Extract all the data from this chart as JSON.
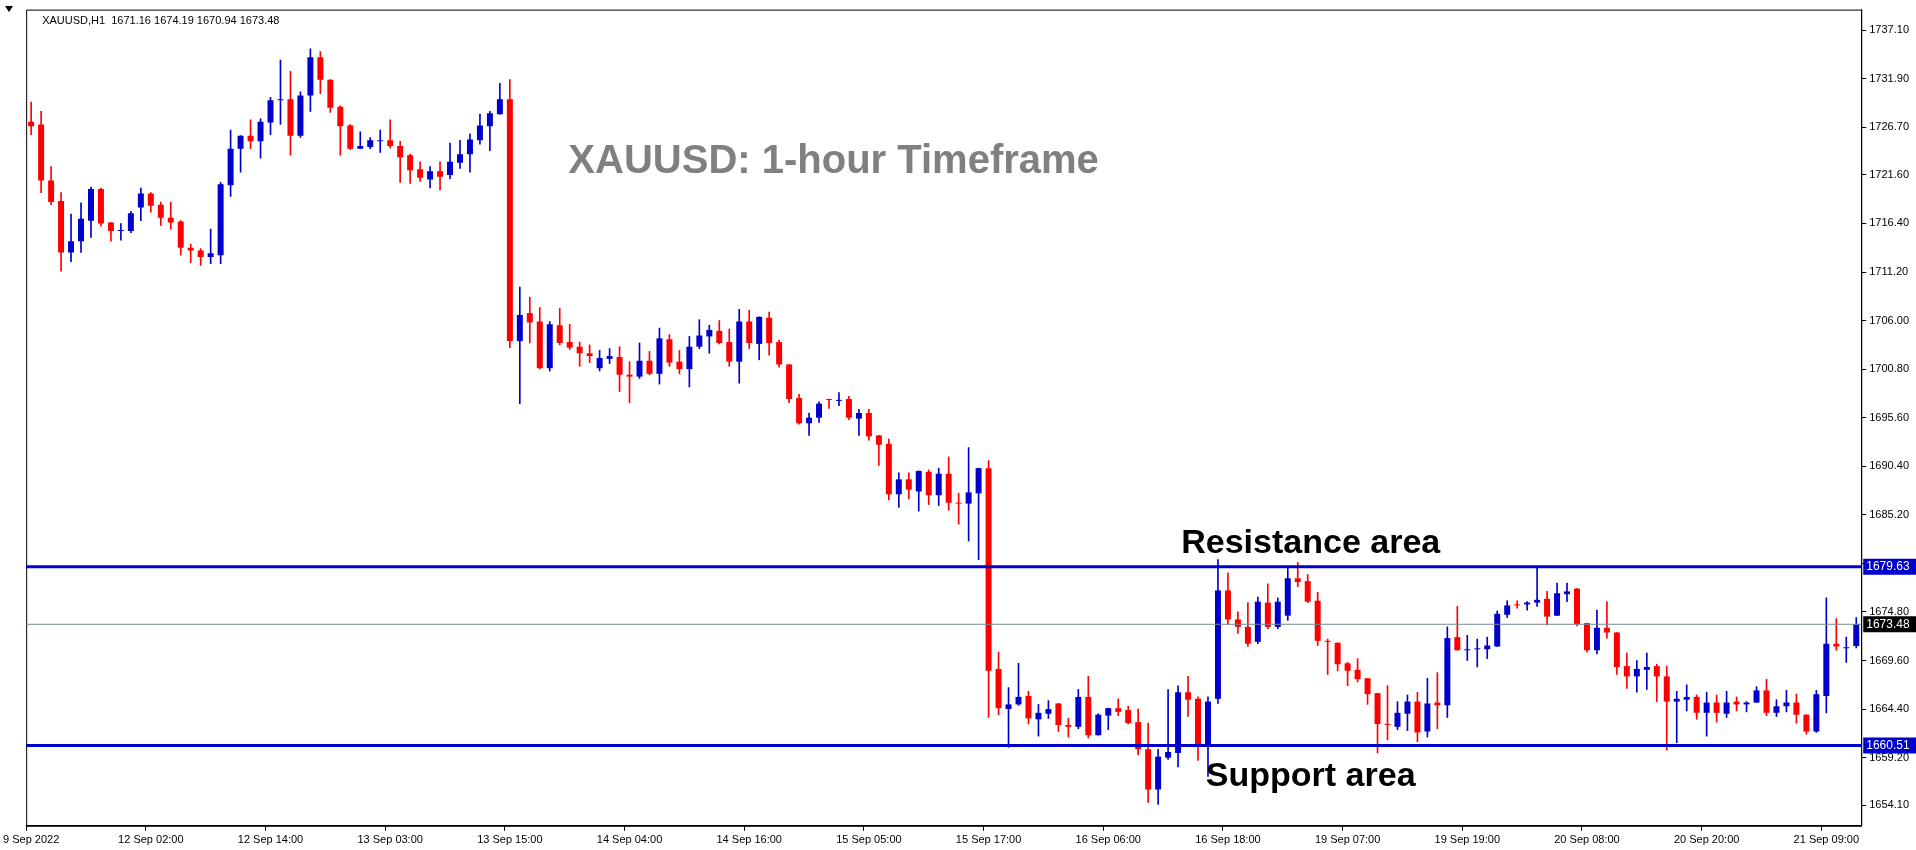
{
  "chart_data": {
    "type": "candlestick",
    "title": "XAUUSD: 1-hour Timeframe",
    "subtitle": "XAUUSD,H1  1671.16 1674.19 1670.94 1673.48",
    "categories": [
      "9 Sep 2022",
      null,
      null,
      null,
      null,
      null,
      null,
      null,
      null,
      null,
      null,
      null,
      "12 Sep 02:00",
      null,
      null,
      null,
      null,
      null,
      null,
      null,
      null,
      null,
      null,
      null,
      "12 Sep 14:00",
      null,
      null,
      null,
      null,
      null,
      null,
      null,
      null,
      null,
      null,
      null,
      "13 Sep 03:00",
      null,
      null,
      null,
      null,
      null,
      null,
      null,
      null,
      null,
      null,
      null,
      "13 Sep 15:00",
      null,
      null,
      null,
      null,
      null,
      null,
      null,
      null,
      null,
      null,
      null,
      "14 Sep 04:00",
      null,
      null,
      null,
      null,
      null,
      null,
      null,
      null,
      null,
      null,
      null,
      "14 Sep 16:00",
      null,
      null,
      null,
      null,
      null,
      null,
      null,
      null,
      null,
      null,
      null,
      "15 Sep 05:00",
      null,
      null,
      null,
      null,
      null,
      null,
      null,
      null,
      null,
      null,
      null,
      "15 Sep 17:00",
      null,
      null,
      null,
      null,
      null,
      null,
      null,
      null,
      null,
      null,
      null,
      "16 Sep 06:00",
      null,
      null,
      null,
      null,
      null,
      null,
      null,
      null,
      null,
      null,
      null,
      "16 Sep 18:00",
      null,
      null,
      null,
      null,
      null,
      null,
      null,
      null,
      null,
      null,
      null,
      "19 Sep 07:00",
      null,
      null,
      null,
      null,
      null,
      null,
      null,
      null,
      null,
      null,
      null,
      "19 Sep 19:00",
      null,
      null,
      null,
      null,
      null,
      null,
      null,
      null,
      null,
      null,
      null,
      "20 Sep 08:00",
      null,
      null,
      null,
      null,
      null,
      null,
      null,
      null,
      null,
      null,
      null,
      "20 Sep 20:00",
      null,
      null,
      null,
      null,
      null,
      null,
      null,
      null,
      null,
      null,
      null,
      "21 Sep 09:00",
      null,
      null,
      null
    ],
    "ohlc": [
      [
        1727.3,
        1729.4,
        1725.9,
        1726.8
      ],
      [
        1727.0,
        1728.4,
        1719.7,
        1721.0
      ],
      [
        1721.0,
        1722.5,
        1718.4,
        1718.7
      ],
      [
        1718.8,
        1719.7,
        1711.3,
        1713.3
      ],
      [
        1713.3,
        1717.4,
        1712.3,
        1714.5
      ],
      [
        1714.5,
        1718.6,
        1713.3,
        1716.9
      ],
      [
        1716.7,
        1720.3,
        1714.9,
        1720.1
      ],
      [
        1720.1,
        1720.2,
        1716.1,
        1716.4
      ],
      [
        1716.5,
        1716.5,
        1714.5,
        1715.6
      ],
      [
        1715.6,
        1716.4,
        1714.6,
        1715.7
      ],
      [
        1715.6,
        1717.7,
        1715.4,
        1717.5
      ],
      [
        1718.1,
        1720.2,
        1716.7,
        1719.6
      ],
      [
        1719.6,
        1719.7,
        1717.6,
        1718.3
      ],
      [
        1718.4,
        1718.7,
        1716.2,
        1717.0
      ],
      [
        1717.0,
        1718.7,
        1715.8,
        1716.5
      ],
      [
        1716.6,
        1716.7,
        1713.0,
        1713.8
      ],
      [
        1713.8,
        1714.2,
        1712.2,
        1713.5
      ],
      [
        1713.5,
        1713.7,
        1711.9,
        1712.8
      ],
      [
        1712.8,
        1715.8,
        1712.1,
        1713.2
      ],
      [
        1713.0,
        1720.8,
        1712.1,
        1720.6
      ],
      [
        1720.5,
        1726.4,
        1719.3,
        1724.4
      ],
      [
        1724.4,
        1725.8,
        1721.9,
        1725.8
      ],
      [
        1725.8,
        1727.5,
        1724.4,
        1725.2
      ],
      [
        1725.2,
        1727.6,
        1723.4,
        1727.3
      ],
      [
        1727.2,
        1729.9,
        1725.9,
        1729.6
      ],
      [
        1729.6,
        1733.9,
        1727.0,
        1729.7
      ],
      [
        1729.7,
        1732.7,
        1723.7,
        1725.8
      ],
      [
        1725.8,
        1730.5,
        1725.6,
        1730.1
      ],
      [
        1730.1,
        1735.1,
        1728.4,
        1734.2
      ],
      [
        1734.2,
        1734.8,
        1730.3,
        1731.8
      ],
      [
        1731.8,
        1731.8,
        1728.3,
        1728.8
      ],
      [
        1728.9,
        1729.0,
        1723.7,
        1726.8
      ],
      [
        1726.9,
        1727.0,
        1724.3,
        1724.4
      ],
      [
        1724.4,
        1726.2,
        1724.4,
        1724.7
      ],
      [
        1724.6,
        1725.6,
        1724.4,
        1725.3
      ],
      [
        1725.2,
        1726.4,
        1724.0,
        1725.3
      ],
      [
        1725.3,
        1727.5,
        1724.5,
        1724.7
      ],
      [
        1724.7,
        1725.2,
        1720.8,
        1723.5
      ],
      [
        1723.7,
        1723.8,
        1720.7,
        1722.1
      ],
      [
        1722.2,
        1723.0,
        1720.9,
        1721.3
      ],
      [
        1721.1,
        1722.5,
        1720.2,
        1722.0
      ],
      [
        1722.0,
        1723.0,
        1720.0,
        1721.4
      ],
      [
        1721.6,
        1725.0,
        1721.2,
        1723.0
      ],
      [
        1722.9,
        1725.3,
        1722.3,
        1723.8
      ],
      [
        1723.8,
        1726.0,
        1721.9,
        1725.4
      ],
      [
        1725.3,
        1728.1,
        1724.9,
        1726.9
      ],
      [
        1726.8,
        1728.4,
        1724.2,
        1728.2
      ],
      [
        1728.1,
        1731.4,
        1728.1,
        1729.7
      ],
      [
        1729.7,
        1731.8,
        1703.1,
        1703.8
      ],
      [
        1703.8,
        1709.6,
        1697.1,
        1706.6
      ],
      [
        1706.8,
        1708.5,
        1703.6,
        1705.8
      ],
      [
        1705.9,
        1707.4,
        1700.8,
        1700.9
      ],
      [
        1700.9,
        1705.9,
        1700.6,
        1705.6
      ],
      [
        1705.5,
        1707.3,
        1703.4,
        1703.6
      ],
      [
        1703.7,
        1705.6,
        1702.9,
        1703.1
      ],
      [
        1703.2,
        1703.7,
        1701.1,
        1702.5
      ],
      [
        1702.5,
        1703.4,
        1701.5,
        1702.2
      ],
      [
        1700.9,
        1702.8,
        1700.6,
        1702.0
      ],
      [
        1701.9,
        1703.0,
        1701.4,
        1702.2
      ],
      [
        1702.1,
        1703.2,
        1698.4,
        1700.2
      ],
      [
        1700.2,
        1701.6,
        1697.2,
        1700.0
      ],
      [
        1700.0,
        1703.6,
        1699.8,
        1701.7
      ],
      [
        1701.7,
        1702.7,
        1700.2,
        1700.3
      ],
      [
        1700.3,
        1705.2,
        1699.2,
        1704.1
      ],
      [
        1704.0,
        1704.5,
        1701.1,
        1701.5
      ],
      [
        1701.6,
        1702.8,
        1700.3,
        1700.8
      ],
      [
        1700.8,
        1704.3,
        1698.9,
        1703.2
      ],
      [
        1703.2,
        1706.1,
        1703.0,
        1704.4
      ],
      [
        1704.3,
        1705.5,
        1702.5,
        1705.0
      ],
      [
        1704.9,
        1706.0,
        1703.5,
        1703.6
      ],
      [
        1703.7,
        1705.1,
        1701.1,
        1701.6
      ],
      [
        1701.6,
        1707.2,
        1699.3,
        1705.9
      ],
      [
        1705.9,
        1707.1,
        1703.0,
        1703.6
      ],
      [
        1703.5,
        1706.4,
        1701.8,
        1706.4
      ],
      [
        1706.3,
        1706.9,
        1702.3,
        1703.6
      ],
      [
        1703.7,
        1703.9,
        1701.0,
        1701.3
      ],
      [
        1701.3,
        1701.3,
        1697.2,
        1697.6
      ],
      [
        1697.7,
        1698.1,
        1694.9,
        1695.0
      ],
      [
        1695.0,
        1696.1,
        1693.7,
        1695.6
      ],
      [
        1695.6,
        1697.3,
        1695.1,
        1697.1
      ],
      [
        1697.6,
        1697.6,
        1696.6,
        1697.5
      ],
      [
        1697.4,
        1698.3,
        1696.9,
        1697.5
      ],
      [
        1697.6,
        1697.9,
        1695.4,
        1695.6
      ],
      [
        1695.5,
        1696.5,
        1693.7,
        1696.1
      ],
      [
        1696.1,
        1696.5,
        1693.2,
        1693.6
      ],
      [
        1693.7,
        1693.7,
        1690.5,
        1692.7
      ],
      [
        1692.8,
        1693.3,
        1686.8,
        1687.4
      ],
      [
        1687.4,
        1689.7,
        1686.0,
        1689.0
      ],
      [
        1689.0,
        1689.7,
        1686.9,
        1687.9
      ],
      [
        1687.7,
        1689.9,
        1685.6,
        1689.9
      ],
      [
        1689.8,
        1690.0,
        1686.3,
        1687.3
      ],
      [
        1687.3,
        1690.2,
        1686.2,
        1689.6
      ],
      [
        1689.6,
        1691.4,
        1685.7,
        1686.5
      ],
      [
        1686.5,
        1687.5,
        1684.2,
        1686.4
      ],
      [
        1686.4,
        1692.4,
        1682.4,
        1687.6
      ],
      [
        1687.5,
        1690.2,
        1680.4,
        1690.2
      ],
      [
        1690.2,
        1691.0,
        1663.5,
        1668.5
      ],
      [
        1668.7,
        1670.5,
        1663.8,
        1664.5
      ],
      [
        1664.4,
        1666.7,
        1660.3,
        1664.9
      ],
      [
        1664.9,
        1669.3,
        1664.8,
        1665.7
      ],
      [
        1665.8,
        1666.3,
        1662.8,
        1663.4
      ],
      [
        1663.3,
        1664.9,
        1661.5,
        1664.0
      ],
      [
        1663.9,
        1665.3,
        1663.4,
        1664.4
      ],
      [
        1665.0,
        1665.0,
        1662.0,
        1662.7
      ],
      [
        1662.7,
        1663.4,
        1661.4,
        1662.5
      ],
      [
        1662.5,
        1666.5,
        1662.3,
        1665.7
      ],
      [
        1665.7,
        1667.9,
        1661.3,
        1661.6
      ],
      [
        1661.6,
        1663.9,
        1661.6,
        1663.8
      ],
      [
        1663.7,
        1664.5,
        1662.2,
        1664.5
      ],
      [
        1664.5,
        1665.5,
        1663.7,
        1664.1
      ],
      [
        1664.3,
        1664.7,
        1662.8,
        1662.9
      ],
      [
        1663.0,
        1664.4,
        1659.5,
        1660.1
      ],
      [
        1660.1,
        1662.9,
        1654.4,
        1655.8
      ],
      [
        1655.8,
        1660.1,
        1654.2,
        1659.3
      ],
      [
        1659.2,
        1666.5,
        1659.0,
        1659.8
      ],
      [
        1659.7,
        1666.9,
        1658.2,
        1666.2
      ],
      [
        1666.2,
        1667.9,
        1663.6,
        1665.4
      ],
      [
        1665.5,
        1665.7,
        1658.9,
        1660.6
      ],
      [
        1660.6,
        1665.7,
        1657.2,
        1665.2
      ],
      [
        1665.5,
        1680.4,
        1665.0,
        1677.1
      ],
      [
        1677.1,
        1679.0,
        1673.5,
        1674.0
      ],
      [
        1674.0,
        1674.8,
        1672.5,
        1673.2
      ],
      [
        1673.2,
        1675.8,
        1671.1,
        1671.4
      ],
      [
        1671.6,
        1676.4,
        1671.4,
        1675.9
      ],
      [
        1675.8,
        1677.8,
        1673.0,
        1673.2
      ],
      [
        1673.2,
        1676.3,
        1673.0,
        1675.9
      ],
      [
        1674.4,
        1679.5,
        1673.9,
        1678.4
      ],
      [
        1678.4,
        1680.1,
        1677.5,
        1678.0
      ],
      [
        1678.1,
        1678.8,
        1675.8,
        1675.9
      ],
      [
        1676.0,
        1676.9,
        1671.2,
        1671.7
      ],
      [
        1671.7,
        1671.9,
        1668.1,
        1671.6
      ],
      [
        1671.5,
        1671.5,
        1668.5,
        1669.2
      ],
      [
        1669.3,
        1669.4,
        1666.9,
        1668.5
      ],
      [
        1668.6,
        1669.8,
        1667.3,
        1667.6
      ],
      [
        1667.7,
        1667.7,
        1664.9,
        1666.0
      ],
      [
        1666.1,
        1666.1,
        1659.7,
        1662.8
      ],
      [
        1662.8,
        1666.9,
        1661.1,
        1662.7
      ],
      [
        1662.5,
        1665.2,
        1662.2,
        1664.0
      ],
      [
        1663.9,
        1665.9,
        1662.1,
        1665.2
      ],
      [
        1665.2,
        1666.2,
        1660.9,
        1661.9
      ],
      [
        1662.0,
        1667.7,
        1661.4,
        1665.0
      ],
      [
        1665.1,
        1668.3,
        1662.3,
        1664.8
      ],
      [
        1664.8,
        1673.2,
        1663.5,
        1672.0
      ],
      [
        1672.1,
        1675.4,
        1670.7,
        1670.7
      ],
      [
        1670.7,
        1672.3,
        1669.6,
        1670.8
      ],
      [
        1670.8,
        1671.9,
        1668.9,
        1670.9
      ],
      [
        1670.8,
        1672.1,
        1669.8,
        1671.2
      ],
      [
        1671.1,
        1674.9,
        1671.1,
        1674.6
      ],
      [
        1674.5,
        1676.0,
        1674.2,
        1675.5
      ],
      [
        1675.6,
        1676.0,
        1675.2,
        1675.5
      ],
      [
        1675.6,
        1675.9,
        1675.0,
        1675.8
      ],
      [
        1675.8,
        1679.6,
        1675.4,
        1676.1
      ],
      [
        1676.2,
        1677.0,
        1673.4,
        1674.3
      ],
      [
        1674.4,
        1677.9,
        1674.4,
        1676.8
      ],
      [
        1676.7,
        1677.9,
        1675.9,
        1677.0
      ],
      [
        1677.3,
        1677.3,
        1673.3,
        1673.5
      ],
      [
        1673.6,
        1673.6,
        1670.5,
        1670.7
      ],
      [
        1670.7,
        1675.0,
        1670.3,
        1673.1
      ],
      [
        1673.1,
        1675.9,
        1672.0,
        1672.6
      ],
      [
        1672.6,
        1672.6,
        1668.1,
        1668.9
      ],
      [
        1669.0,
        1670.4,
        1666.6,
        1667.9
      ],
      [
        1667.9,
        1669.6,
        1666.2,
        1668.7
      ],
      [
        1668.6,
        1670.4,
        1666.5,
        1668.9
      ],
      [
        1669.0,
        1669.2,
        1665.2,
        1667.9
      ],
      [
        1667.9,
        1669.0,
        1660.0,
        1665.2
      ],
      [
        1665.2,
        1666.3,
        1660.8,
        1665.5
      ],
      [
        1665.4,
        1667.0,
        1664.2,
        1665.7
      ],
      [
        1665.7,
        1665.9,
        1663.3,
        1664.0
      ],
      [
        1664.0,
        1666.2,
        1661.5,
        1665.1
      ],
      [
        1665.1,
        1665.9,
        1663.0,
        1664.0
      ],
      [
        1663.9,
        1666.3,
        1663.5,
        1665.1
      ],
      [
        1665.2,
        1665.7,
        1664.2,
        1664.9
      ],
      [
        1664.9,
        1665.2,
        1664.1,
        1665.1
      ],
      [
        1665.1,
        1666.8,
        1665.1,
        1666.4
      ],
      [
        1666.4,
        1667.6,
        1663.7,
        1664.0
      ],
      [
        1664.0,
        1665.4,
        1663.6,
        1664.7
      ],
      [
        1664.7,
        1666.4,
        1664.1,
        1665.1
      ],
      [
        1665.1,
        1666.0,
        1662.9,
        1663.8
      ],
      [
        1663.8,
        1663.8,
        1661.7,
        1662.0
      ],
      [
        1662.0,
        1666.4,
        1661.9,
        1666.0
      ],
      [
        1665.8,
        1676.3,
        1664.0,
        1671.4
      ],
      [
        1671.4,
        1674.1,
        1670.7,
        1671.1
      ],
      [
        1670.9,
        1672.1,
        1669.4,
        1671.0
      ],
      [
        1671.16,
        1674.19,
        1670.94,
        1673.48
      ]
    ],
    "colors": [
      "#ff0000",
      "#ff0000",
      "#ff0000",
      "#ff0000",
      "#0000cc",
      "#0000cc",
      "#0000cc",
      "#ff0000",
      "#ff0000",
      "#0000cc",
      "#0000cc",
      "#0000cc",
      "#ff0000",
      "#ff0000",
      "#ff0000",
      "#ff0000",
      "#ff0000",
      "#ff0000",
      "#0000cc",
      "#0000cc",
      "#0000cc",
      "#0000cc",
      "#ff0000",
      "#0000cc",
      "#0000cc",
      "#0000cc",
      "#ff0000",
      "#0000cc",
      "#0000cc",
      "#ff0000",
      "#ff0000",
      "#ff0000",
      "#ff0000",
      "#0000cc",
      "#0000cc",
      "#0000cc",
      "#ff0000",
      "#ff0000",
      "#ff0000",
      "#ff0000",
      "#0000cc",
      "#ff0000",
      "#0000cc",
      "#0000cc",
      "#0000cc",
      "#0000cc",
      "#0000cc",
      "#0000cc",
      "#ff0000",
      "#0000cc",
      "#ff0000",
      "#ff0000",
      "#0000cc",
      "#ff0000",
      "#ff0000",
      "#ff0000",
      "#ff0000",
      "#0000cc",
      "#0000cc",
      "#ff0000",
      "#ff0000",
      "#0000cc",
      "#ff0000",
      "#0000cc",
      "#ff0000",
      "#ff0000",
      "#0000cc",
      "#0000cc",
      "#0000cc",
      "#ff0000",
      "#ff0000",
      "#0000cc",
      "#ff0000",
      "#0000cc",
      "#ff0000",
      "#ff0000",
      "#ff0000",
      "#ff0000",
      "#0000cc",
      "#0000cc",
      "#ff0000",
      "#0000cc",
      "#ff0000",
      "#0000cc",
      "#ff0000",
      "#ff0000",
      "#ff0000",
      "#0000cc",
      "#ff0000",
      "#0000cc",
      "#ff0000",
      "#0000cc",
      "#ff0000",
      "#ff0000",
      "#0000cc",
      "#0000cc",
      "#ff0000",
      "#ff0000",
      "#0000cc",
      "#0000cc",
      "#ff0000",
      "#0000cc",
      "#0000cc",
      "#ff0000",
      "#ff0000",
      "#0000cc",
      "#ff0000",
      "#0000cc",
      "#0000cc",
      "#ff0000",
      "#ff0000",
      "#ff0000",
      "#ff0000",
      "#0000cc",
      "#0000cc",
      "#0000cc",
      "#ff0000",
      "#ff0000",
      "#0000cc",
      "#0000cc",
      "#ff0000",
      "#ff0000",
      "#ff0000",
      "#0000cc",
      "#ff0000",
      "#0000cc",
      "#0000cc",
      "#ff0000",
      "#ff0000",
      "#ff0000",
      "#ff0000",
      "#ff0000",
      "#ff0000",
      "#ff0000",
      "#ff0000",
      "#ff0000",
      "#ff0000",
      "#0000cc",
      "#0000cc",
      "#ff0000",
      "#0000cc",
      "#ff0000",
      "#0000cc",
      "#ff0000",
      "#0000cc",
      "#0000cc",
      "#0000cc",
      "#0000cc",
      "#0000cc",
      "#ff0000",
      "#0000cc",
      "#0000cc",
      "#ff0000",
      "#0000cc",
      "#0000cc",
      "#ff0000",
      "#ff0000",
      "#0000cc",
      "#ff0000",
      "#ff0000",
      "#ff0000",
      "#0000cc",
      "#0000cc",
      "#ff0000",
      "#ff0000",
      "#0000cc",
      "#0000cc",
      "#ff0000",
      "#0000cc",
      "#ff0000",
      "#0000cc",
      "#ff0000",
      "#0000cc",
      "#0000cc",
      "#ff0000",
      "#0000cc",
      "#0000cc",
      "#ff0000",
      "#ff0000",
      "#0000cc",
      "#0000cc",
      "#ff0000",
      "#0000cc",
      "#0000cc"
    ],
    "ylim": [
      1651.9,
      1739.3
    ],
    "yticks": [
      {
        "value": 1737.1,
        "label": "1737.10"
      },
      {
        "value": 1731.9,
        "label": "1731.90"
      },
      {
        "value": 1726.7,
        "label": "1726.70"
      },
      {
        "value": 1721.6,
        "label": "1721.60"
      },
      {
        "value": 1716.4,
        "label": "1716.40"
      },
      {
        "value": 1711.2,
        "label": "1711.20"
      },
      {
        "value": 1706,
        "label": "1706.00"
      },
      {
        "value": 1700.8,
        "label": "1700.80"
      },
      {
        "value": 1695.6,
        "label": "1695.60"
      },
      {
        "value": 1690.4,
        "label": "1690.40"
      },
      {
        "value": 1685.2,
        "label": "1685.20"
      },
      {
        "value": 1680,
        "label": null
      },
      {
        "value": 1674.8,
        "label": "1674.80"
      },
      {
        "value": 1669.6,
        "label": "1669.60"
      },
      {
        "value": 1664.4,
        "label": "1664.40"
      },
      {
        "value": 1659.2,
        "label": "1659.20"
      },
      {
        "value": 1654.1,
        "label": "1654.10"
      }
    ],
    "ref_lines": [
      {
        "axis": "y",
        "value": 1679.63,
        "label": "Resistance area",
        "color": "#0000cc"
      },
      {
        "axis": "y",
        "value": 1660.51,
        "label": "Support area",
        "color": "#0000cc"
      },
      {
        "axis": "y",
        "value": 1673.48,
        "color": "#778899"
      }
    ],
    "annotations": [
      "1679.63",
      "1660.51",
      "1673.48"
    ],
    "grid": false,
    "legend": false
  }
}
